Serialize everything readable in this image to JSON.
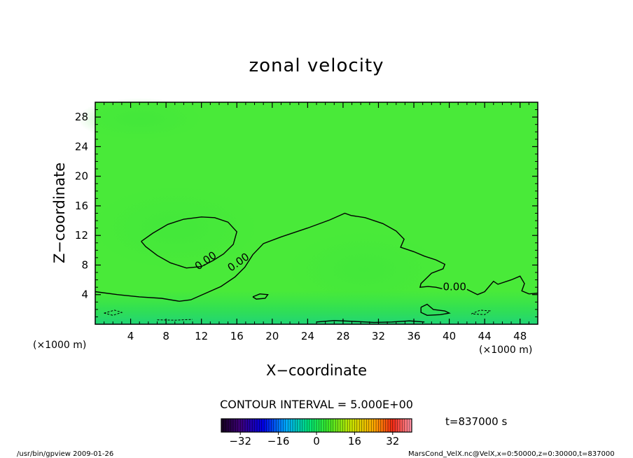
{
  "chart_data": {
    "type": "heatmap",
    "title": "zonal velocity",
    "xlabel": "X−coordinate",
    "ylabel": "Z−coordinate",
    "x_unit": "(×1000 m)",
    "y_unit": "(×1000 m)",
    "xlim": [
      0,
      50
    ],
    "ylim": [
      0,
      30
    ],
    "x_ticks": [
      4,
      8,
      12,
      16,
      20,
      24,
      28,
      32,
      36,
      40,
      44,
      48
    ],
    "y_ticks": [
      4,
      8,
      12,
      16,
      20,
      24,
      28
    ],
    "contour_interval_text": "CONTOUR INTERVAL = 5.000E+00",
    "contour_labels": [
      {
        "text": "0.00",
        "x": 12.7,
        "y": 8.2
      },
      {
        "text": "0.00",
        "x": 16.4,
        "y": 8.0
      },
      {
        "text": "0.00",
        "x": 40.6,
        "y": 4.6
      }
    ],
    "contours_zero": [
      [
        [
          5.2,
          11.2
        ],
        [
          6.5,
          12.3
        ],
        [
          8.2,
          13.5
        ],
        [
          10.0,
          14.2
        ],
        [
          12.0,
          14.5
        ],
        [
          13.5,
          14.4
        ],
        [
          15.0,
          13.8
        ],
        [
          16.0,
          12.5
        ],
        [
          15.6,
          10.8
        ],
        [
          14.5,
          9.5
        ],
        [
          13.3,
          8.6
        ],
        [
          12.0,
          7.8
        ],
        [
          10.3,
          7.6
        ],
        [
          8.5,
          8.3
        ],
        [
          7.0,
          9.3
        ],
        [
          5.7,
          10.5
        ],
        [
          5.2,
          11.2
        ]
      ],
      [
        [
          0.0,
          4.4
        ],
        [
          2.5,
          4.0
        ],
        [
          5.0,
          3.7
        ],
        [
          7.5,
          3.5
        ],
        [
          9.5,
          3.1
        ],
        [
          10.8,
          3.3
        ],
        [
          12.5,
          4.2
        ],
        [
          14.2,
          5.1
        ],
        [
          15.8,
          6.4
        ],
        [
          16.9,
          7.7
        ],
        [
          17.8,
          9.4
        ],
        [
          19.0,
          10.9
        ],
        [
          21.0,
          11.8
        ],
        [
          24.0,
          13.0
        ],
        [
          26.5,
          14.1
        ],
        [
          28.2,
          15.0
        ],
        [
          28.9,
          14.7
        ],
        [
          30.5,
          14.4
        ],
        [
          32.5,
          13.6
        ],
        [
          34.0,
          12.6
        ],
        [
          34.9,
          11.5
        ],
        [
          34.5,
          10.4
        ],
        [
          36.0,
          9.8
        ],
        [
          37.2,
          9.2
        ],
        [
          38.5,
          8.7
        ],
        [
          39.5,
          8.1
        ],
        [
          39.3,
          7.5
        ],
        [
          38.0,
          6.9
        ],
        [
          36.8,
          5.5
        ],
        [
          36.7,
          5.0
        ],
        [
          37.6,
          5.1
        ],
        [
          38.5,
          5.0
        ],
        [
          39.2,
          4.8
        ]
      ],
      [
        [
          42.0,
          4.7
        ],
        [
          43.2,
          4.0
        ],
        [
          44.0,
          4.4
        ],
        [
          45.0,
          5.8
        ],
        [
          45.5,
          5.4
        ],
        [
          47.0,
          6.0
        ],
        [
          48.0,
          6.5
        ],
        [
          48.5,
          5.5
        ],
        [
          48.2,
          4.5
        ],
        [
          49.0,
          4.1
        ],
        [
          50.0,
          4.2
        ]
      ],
      [
        [
          17.8,
          3.7
        ],
        [
          18.6,
          4.1
        ],
        [
          19.5,
          4.0
        ],
        [
          19.2,
          3.5
        ],
        [
          18.2,
          3.4
        ],
        [
          17.8,
          3.7
        ]
      ],
      [
        [
          36.8,
          2.3
        ],
        [
          37.5,
          2.7
        ],
        [
          38.2,
          2.0
        ],
        [
          39.5,
          1.8
        ],
        [
          40.0,
          1.5
        ],
        [
          39.0,
          1.3
        ],
        [
          37.5,
          1.2
        ],
        [
          36.8,
          1.6
        ],
        [
          36.8,
          2.3
        ]
      ],
      [
        [
          25.0,
          0.3
        ],
        [
          27.0,
          0.5
        ],
        [
          29.0,
          0.4
        ],
        [
          31.5,
          0.25
        ],
        [
          33.5,
          0.3
        ],
        [
          35.5,
          0.45
        ],
        [
          37.2,
          0.3
        ]
      ]
    ],
    "contours_negative": [
      [
        [
          1.0,
          1.5
        ],
        [
          2.2,
          1.9
        ],
        [
          3.0,
          1.6
        ],
        [
          2.0,
          1.2
        ],
        [
          1.0,
          1.5
        ]
      ],
      [
        [
          42.5,
          1.4
        ],
        [
          43.5,
          1.9
        ],
        [
          44.6,
          1.8
        ],
        [
          44.0,
          1.3
        ],
        [
          42.5,
          1.4
        ]
      ],
      [
        [
          7.0,
          0.6
        ],
        [
          9.0,
          0.55
        ],
        [
          11.0,
          0.65
        ]
      ]
    ],
    "colorbar": {
      "ticks": [
        -32,
        -16,
        0,
        16,
        32
      ],
      "range": [
        -40,
        40
      ]
    },
    "time_label": "t=837000 s"
  },
  "footer": {
    "left": "/usr/bin/gpview  2009-01-26",
    "right": "MarsCond_VelX.nc@VelX,x=0:50000,z=0:30000,t=837000"
  }
}
